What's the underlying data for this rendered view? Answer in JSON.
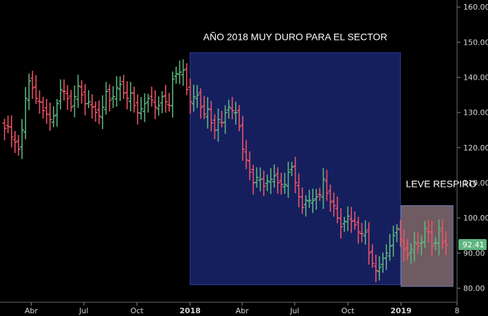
{
  "chart_data": {
    "type": "ohlc",
    "title": "",
    "xlabel": "",
    "ylabel": "",
    "ylim": [
      76,
      162
    ],
    "grid": false,
    "y_ticks": [
      "160.00",
      "150.00",
      "140.00",
      "130.00",
      "120.00",
      "110.00",
      "100.00",
      "90.00",
      "80.00"
    ],
    "y_tick_values": [
      160,
      150,
      140,
      130,
      120,
      110,
      100,
      90,
      80
    ],
    "x_ticks": [
      {
        "label": "Abr",
        "date": "2017-04-01",
        "bold": false
      },
      {
        "label": "Jul",
        "date": "2017-07-01",
        "bold": false
      },
      {
        "label": "Oct",
        "date": "2017-10-01",
        "bold": false
      },
      {
        "label": "2018",
        "date": "2018-01-01",
        "bold": true
      },
      {
        "label": "Abr",
        "date": "2018-04-01",
        "bold": false
      },
      {
        "label": "Jul",
        "date": "2018-07-01",
        "bold": false
      },
      {
        "label": "Oct",
        "date": "2018-10-01",
        "bold": false
      },
      {
        "label": "2019",
        "date": "2019-01-01",
        "bold": true
      },
      {
        "label": "8",
        "date": "2019-04-08",
        "bold": false
      }
    ],
    "x_range": [
      "2017-02-06",
      "2019-04-08"
    ],
    "last_price": {
      "value": 92.41,
      "label": "92.41"
    },
    "up_color": "#5fb680",
    "down_color": "#ef5466",
    "closes": [
      125.5,
      126,
      123,
      121.5,
      119.5,
      125,
      134,
      139,
      137,
      134,
      133,
      130.5,
      129.5,
      128,
      129,
      132.5,
      136.5,
      136,
      134,
      131.5,
      134.5,
      137.5,
      135,
      132.5,
      133,
      131.5,
      130,
      129,
      131.5,
      136,
      133.5,
      134.5,
      137,
      138,
      135.5,
      134,
      135.5,
      132,
      130,
      131,
      132.5,
      134,
      133.5,
      131.5,
      132,
      134.5,
      133,
      132,
      139.5,
      141,
      141.5,
      142,
      136.5,
      133,
      134.5,
      135,
      131.5,
      129.5,
      131,
      127,
      125,
      128,
      127,
      130,
      131.5,
      130.5,
      130,
      126,
      119.5,
      116.5,
      113,
      110,
      111.5,
      111,
      109,
      110.5,
      111,
      112,
      110,
      109.5,
      109.5,
      113,
      114.5,
      110,
      106,
      103,
      105,
      105,
      105,
      106,
      106.5,
      111,
      107,
      104.5,
      103.5,
      100,
      97.5,
      99,
      100.5,
      99,
      98,
      96,
      95.5,
      96,
      90,
      87,
      85,
      86,
      88.5,
      90,
      92,
      95,
      97,
      94,
      91,
      89.5,
      91,
      93,
      92,
      93,
      97,
      96,
      92,
      93,
      97,
      93,
      92.41
    ],
    "annotations": [
      {
        "text": "AÑO 2018 MUY DURO PARA EL SECTOR",
        "start": "2018-01-01",
        "end": "2018-12-31",
        "low": 81,
        "high": 147,
        "fill": "#1b2672"
      },
      {
        "text": "LEVE RESPIRO",
        "start": "2019-01-01",
        "end": "2019-04-01",
        "low": 80.5,
        "high": 103.5,
        "fill": "#7e6870"
      }
    ]
  }
}
